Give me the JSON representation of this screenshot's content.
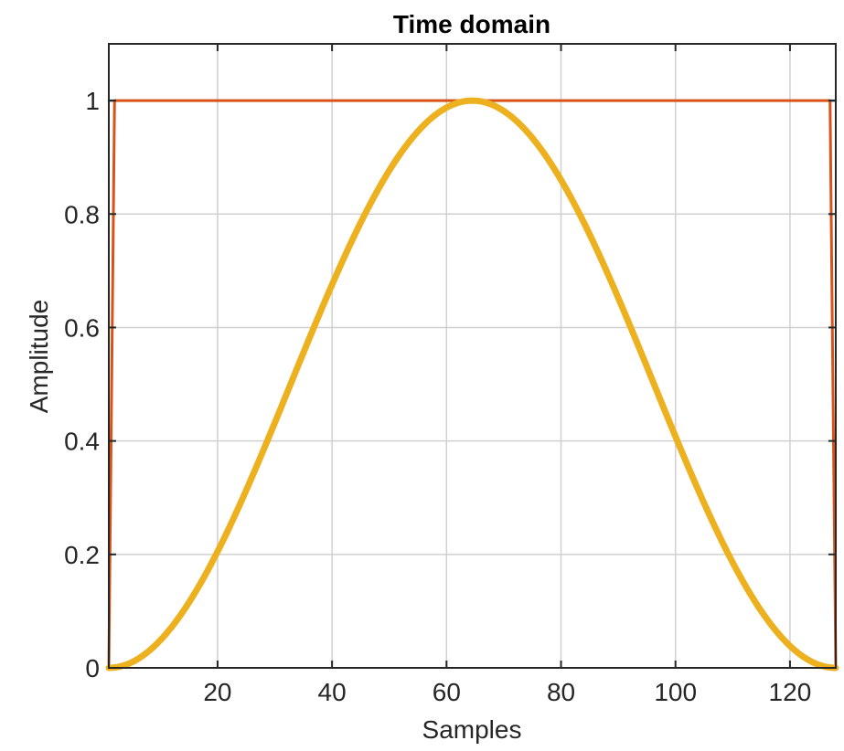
{
  "chart_data": {
    "type": "line",
    "title": "Time domain",
    "xlabel": "Samples",
    "ylabel": "Amplitude",
    "xlim": [
      1,
      128
    ],
    "ylim": [
      0,
      1.1
    ],
    "xticks": [
      20,
      40,
      60,
      80,
      100,
      120
    ],
    "yticks": [
      0,
      0.2,
      0.4,
      0.6,
      0.8,
      1
    ],
    "ytick_labels": [
      "0",
      "0.2",
      "0.4",
      "0.6",
      "0.8",
      "1"
    ],
    "grid": true,
    "legend": "none",
    "series": [
      {
        "color": "#0072BD",
        "x": [
          1,
          2,
          127,
          128
        ],
        "y": [
          1,
          1,
          1,
          1
        ]
      },
      {
        "color": "#D95319",
        "x": [
          1,
          2,
          127,
          128
        ],
        "y": [
          0,
          1,
          1,
          0
        ]
      },
      {
        "color": "#EDB120",
        "x": [
          1,
          8,
          16,
          24,
          32,
          40,
          48,
          56,
          64,
          72,
          80,
          88,
          96,
          104,
          112,
          120,
          128
        ],
        "y": [
          0,
          0.029,
          0.134,
          0.296,
          0.481,
          0.667,
          0.828,
          0.945,
          1.0,
          0.985,
          0.903,
          0.767,
          0.593,
          0.406,
          0.229,
          0.089,
          0
        ]
      }
    ]
  }
}
